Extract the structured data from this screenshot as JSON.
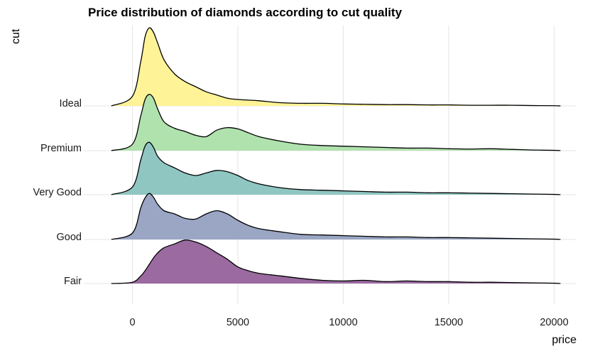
{
  "chart_data": {
    "type": "area",
    "subtype": "ridgeline-density",
    "title": "Price distribution of diamonds according to cut quality",
    "xlabel": "price",
    "ylabel": "cut",
    "xlim": [
      -1000,
      20500
    ],
    "x_ticks": [
      0,
      5000,
      10000,
      15000,
      20000
    ],
    "grid": true,
    "legend": "none",
    "density_x": [
      -1000,
      0,
      400,
      600,
      800,
      1000,
      1200,
      1500,
      2000,
      2500,
      3000,
      3500,
      4000,
      4500,
      5000,
      5500,
      6000,
      7000,
      8000,
      9000,
      10000,
      11000,
      12000,
      13000,
      14000,
      15000,
      16000,
      17000,
      18000,
      19000,
      20000,
      20300
    ],
    "series": [
      {
        "name": "Fair",
        "color": "#9a6aa0",
        "density": [
          0,
          0.02,
          0.12,
          0.2,
          0.3,
          0.4,
          0.48,
          0.56,
          0.62,
          0.68,
          0.65,
          0.58,
          0.48,
          0.38,
          0.26,
          0.2,
          0.16,
          0.12,
          0.08,
          0.05,
          0.04,
          0.05,
          0.03,
          0.04,
          0.03,
          0.03,
          0.02,
          0.02,
          0.015,
          0.01,
          0.005,
          0
        ]
      },
      {
        "name": "Good",
        "color": "#9aa6c4",
        "density": [
          0,
          0.1,
          0.5,
          0.65,
          0.72,
          0.66,
          0.55,
          0.45,
          0.4,
          0.33,
          0.32,
          0.4,
          0.45,
          0.4,
          0.3,
          0.22,
          0.17,
          0.12,
          0.08,
          0.07,
          0.06,
          0.05,
          0.04,
          0.04,
          0.03,
          0.03,
          0.025,
          0.02,
          0.015,
          0.01,
          0.005,
          0
        ]
      },
      {
        "name": "Very Good",
        "color": "#8fc6c2",
        "density": [
          0,
          0.12,
          0.55,
          0.76,
          0.82,
          0.74,
          0.6,
          0.5,
          0.42,
          0.34,
          0.3,
          0.34,
          0.38,
          0.36,
          0.3,
          0.22,
          0.17,
          0.11,
          0.08,
          0.07,
          0.06,
          0.05,
          0.04,
          0.04,
          0.03,
          0.03,
          0.025,
          0.02,
          0.015,
          0.01,
          0.005,
          0
        ]
      },
      {
        "name": "Premium",
        "color": "#b0e2ae",
        "density": [
          0,
          0.1,
          0.55,
          0.8,
          0.88,
          0.82,
          0.65,
          0.45,
          0.35,
          0.3,
          0.24,
          0.22,
          0.32,
          0.36,
          0.34,
          0.28,
          0.22,
          0.15,
          0.1,
          0.08,
          0.07,
          0.06,
          0.05,
          0.04,
          0.04,
          0.03,
          0.025,
          0.03,
          0.02,
          0.01,
          0.005,
          0
        ]
      },
      {
        "name": "Ideal",
        "color": "#fff397",
        "density": [
          0,
          0.15,
          0.7,
          1.08,
          1.22,
          1.15,
          0.98,
          0.72,
          0.5,
          0.38,
          0.3,
          0.22,
          0.17,
          0.12,
          0.1,
          0.09,
          0.08,
          0.05,
          0.04,
          0.04,
          0.03,
          0.025,
          0.02,
          0.02,
          0.015,
          0.015,
          0.01,
          0.01,
          0.01,
          0.005,
          0.003,
          0
        ]
      }
    ]
  }
}
